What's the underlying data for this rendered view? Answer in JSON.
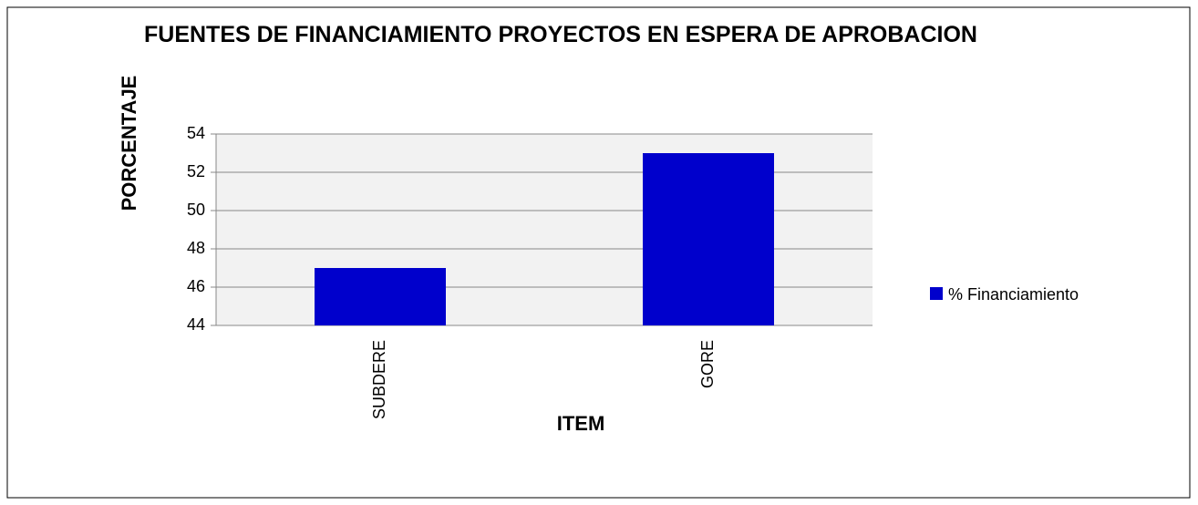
{
  "chart_data": {
    "type": "bar",
    "title": "FUENTES DE FINANCIAMIENTO PROYECTOS EN ESPERA DE APROBACION",
    "x_label": "ITEM",
    "y_label": "PORCENTAJE",
    "categories": [
      "SUBDERE",
      "GORE"
    ],
    "series": [
      {
        "name": "% Financiamiento",
        "color": "#0000cc",
        "values": [
          47,
          53
        ]
      }
    ],
    "ylim": [
      44,
      54
    ],
    "yticks": [
      44,
      46,
      48,
      50,
      52,
      54
    ],
    "grid": true,
    "legend": "right"
  }
}
